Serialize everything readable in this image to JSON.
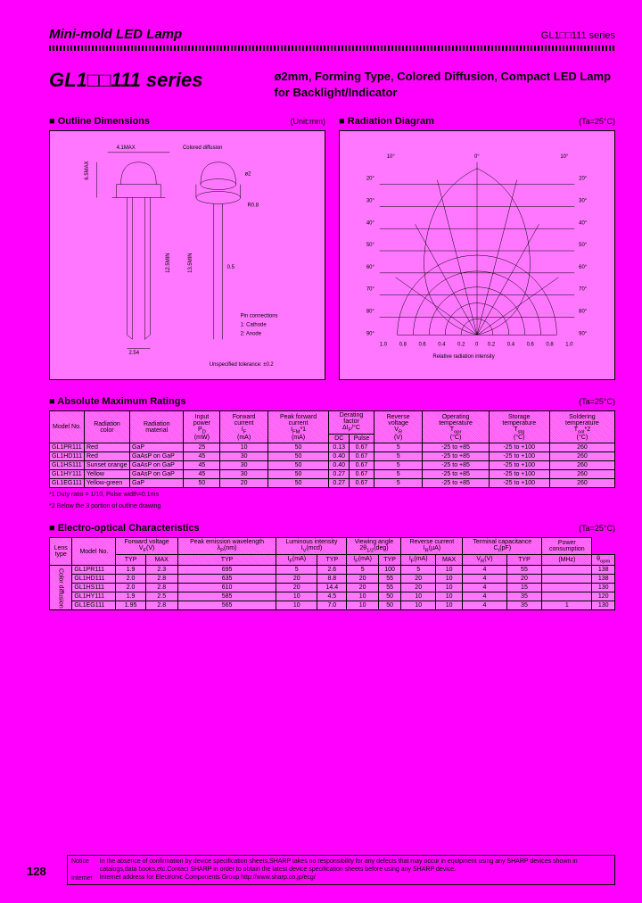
{
  "header": {
    "title": "Mini-mold LED Lamp",
    "series": "GL1□□111 series"
  },
  "main_title": "GL1□□111 series",
  "subtitle": "ø2mm, Forming Type, Colored Diffusion, Compact LED Lamp for Backlight/Indicator",
  "outline": {
    "title": "Outline Dimensions",
    "unit": "(Unit:mm)",
    "labels": {
      "width_max": "4.1MAX",
      "diffusion": "Colored diffusion",
      "height_max": "6.5MAX",
      "diameter": "ø2",
      "radius": "R0.8",
      "lead_pitch": "2.54",
      "lead_length": "12.5MIN",
      "lead_length2": "13.5MIN",
      "lead_width": "0.5",
      "pin_header": "Pin connections",
      "pin1": "1: Cathode",
      "pin2": "2: Anode",
      "tolerance": "Unspecified tolerance: ±0.2"
    }
  },
  "radiation": {
    "title": "Radiation Diagram",
    "unit": "(Ta=25°C)",
    "angle_ticks": [
      "90°",
      "80°",
      "70°",
      "60°",
      "50°",
      "40°",
      "30°",
      "20°",
      "10°",
      "0°"
    ],
    "xlabel": "Relative radiation intensity",
    "ticks_x": [
      "1.0",
      "0.8",
      "0.6",
      "0.4",
      "0.2",
      "0",
      "0.2",
      "0.4",
      "0.6",
      "0.8",
      "1.0"
    ]
  },
  "abs_max": {
    "title": "Absolute Maximum Ratings",
    "unit": "(Ta=25°C)",
    "headers": [
      "Model No.",
      "Radiation color",
      "Radiation material",
      "Input power PD (mW)",
      "Forward current IF (mA)",
      "Peak forward current IFM*1 (mA)",
      "Derating factor ΔIF/°C DC | Pulse",
      "Reverse voltage VR (V)",
      "Operating temperature Topr (°C)",
      "Storage temperature Tstg (°C)",
      "Soldering temperature Tsol*2 (°C)"
    ],
    "rows": [
      [
        "GL1PR111",
        "Red",
        "GaP",
        "25",
        "10",
        "50",
        "0.13",
        "0.67",
        "5",
        "-25 to +85",
        "-25 to +100",
        "260"
      ],
      [
        "GL1HD111",
        "Red",
        "GaAsP on GaP",
        "45",
        "30",
        "50",
        "0.40",
        "0.67",
        "5",
        "-25 to +85",
        "-25 to +100",
        "260"
      ],
      [
        "GL1HS111",
        "Sunset orange",
        "GaAsP on GaP",
        "45",
        "30",
        "50",
        "0.40",
        "0.67",
        "5",
        "-25 to +85",
        "-25 to +100",
        "260"
      ],
      [
        "GL1HY111",
        "Yellow",
        "GaAsP on GaP",
        "45",
        "30",
        "50",
        "0.27",
        "0.67",
        "5",
        "-25 to +85",
        "-25 to +100",
        "260"
      ],
      [
        "GL1EG111",
        "Yellow-green",
        "GaP",
        "50",
        "20",
        "50",
        "0.27",
        "0.67",
        "5",
        "-25 to +85",
        "-25 to +100",
        "260"
      ]
    ],
    "foot1": "*1 Duty ratio = 1/10, Pulse width=0.1ms",
    "foot2": "*2 Below the 3 portion of outline drawing"
  },
  "electro": {
    "title": "Electro-optical Characteristics",
    "unit": "(Ta=25°C)",
    "cols_top": [
      "Lens type",
      "Model No.",
      "Forward voltage VF (V)",
      "Peak emission wavelength λP (nm)",
      "Luminous intensity IV (mcd)",
      "Viewing angle 2θ1/2 (deg)",
      "Reverse current IR (µA)",
      "Terminal capacitance Ct (pF)",
      "Power consumption P (mW)"
    ],
    "cols_sub": [
      "",
      "",
      "TYP",
      "MAX",
      "TYP",
      "IF (mA)",
      "TYP",
      "IF (mA)",
      "TYP",
      "IF (mA)",
      "MAX",
      "VR (V)",
      "TYP",
      "(MHz)"
    ],
    "lens_type": "Color diffusion",
    "rows": [
      [
        "GL1PR111",
        "1.9",
        "2.3",
        "695",
        "5",
        "2.6",
        "5",
        "100",
        "5",
        "10",
        "4",
        "55",
        "",
        "138"
      ],
      [
        "GL1HD111",
        "2.0",
        "2.8",
        "635",
        "20",
        "8.8",
        "20",
        "55",
        "20",
        "10",
        "4",
        "20",
        "",
        "138"
      ],
      [
        "GL1HS111",
        "2.0",
        "2.8",
        "610",
        "20",
        "14.4",
        "20",
        "55",
        "20",
        "10",
        "4",
        "15",
        "",
        "130"
      ],
      [
        "GL1HY111",
        "1.9",
        "2.5",
        "585",
        "10",
        "4.5",
        "10",
        "50",
        "10",
        "10",
        "4",
        "35",
        "",
        "120"
      ],
      [
        "GL1EG111",
        "1.95",
        "2.8",
        "565",
        "10",
        "7.0",
        "10",
        "50",
        "10",
        "10",
        "4",
        "35",
        "1",
        "130"
      ]
    ]
  },
  "page_num": "128",
  "footer": {
    "notice_label": "Notice",
    "internet_label": "Internet",
    "notice": "In the absence of confirmation by device specification sheets,SHARP takes no responsibility for any defects that may occur in equipment using any SHARP devices shown in catalogs,data books,etc.Contact SHARP in order to obtain the latest device specification sheets before using any SHARP device.",
    "internet": "Internet address for Electronic Components Group http://www.sharp.co.jp/ecg/"
  }
}
